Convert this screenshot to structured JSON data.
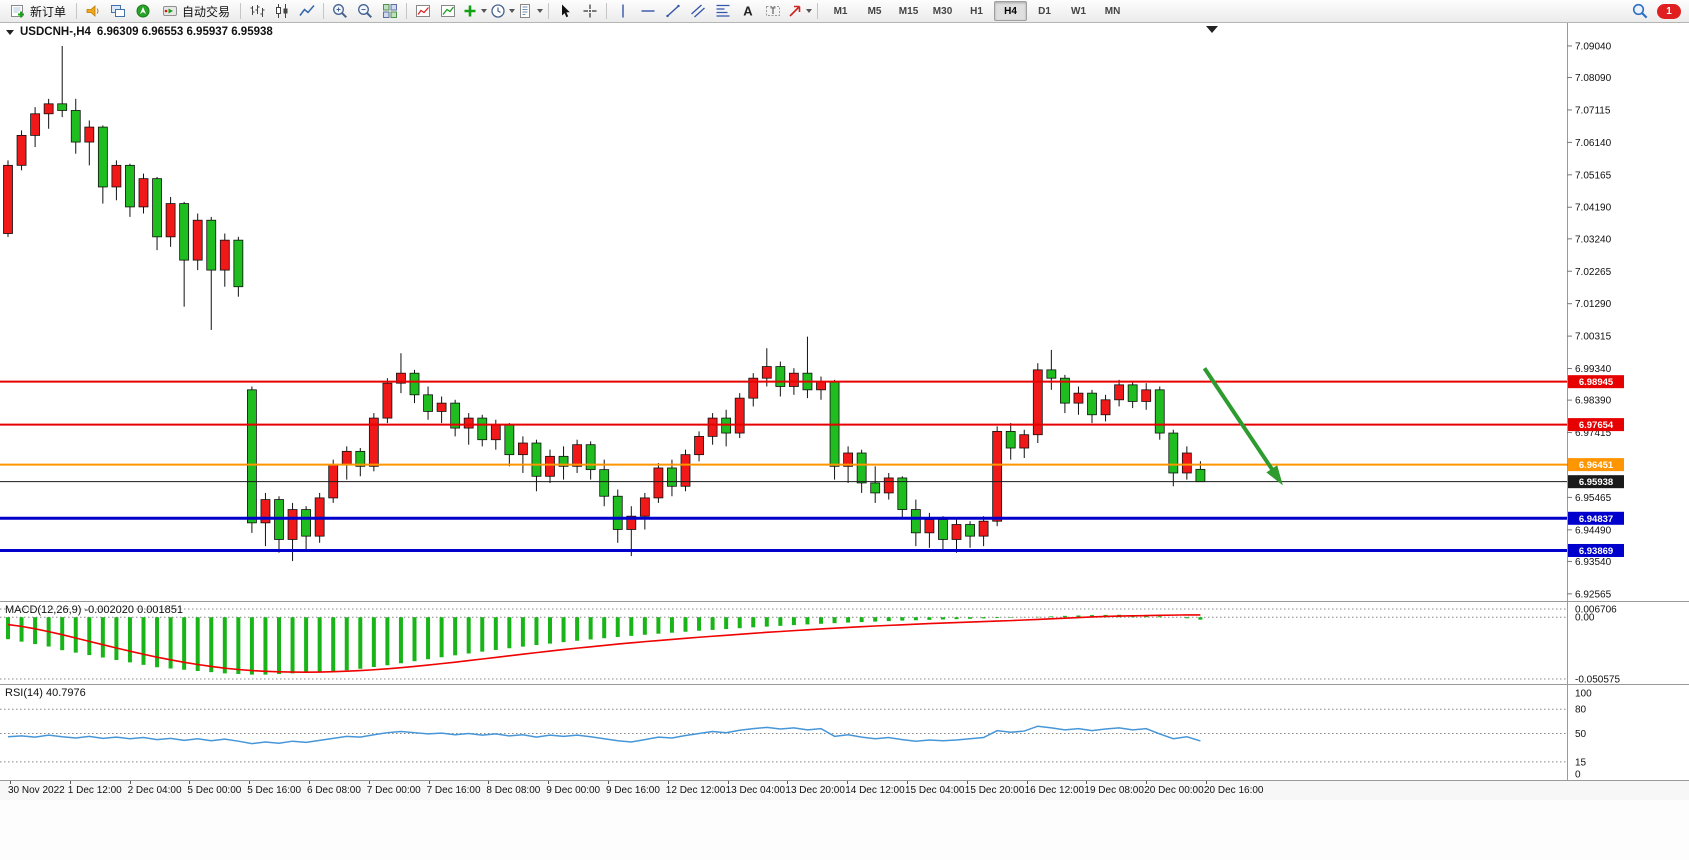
{
  "toolbar": {
    "new_order_label": "新订单",
    "auto_trading_label": "自动交易",
    "timeframes": [
      "M1",
      "M5",
      "M15",
      "M30",
      "H1",
      "H4",
      "D1",
      "W1",
      "MN"
    ],
    "active_timeframe": "H4",
    "notification_count": "1"
  },
  "chart": {
    "symbol_title": "USDCNH-,H4",
    "ohlc_line": "6.96309 6.96553 6.95937 6.95938",
    "axis_labels": [
      "7.09040",
      "7.08090",
      "7.07115",
      "7.06140",
      "7.05165",
      "7.04190",
      "7.03240",
      "7.02265",
      "7.01290",
      "7.00315",
      "6.99340",
      "6.98390",
      "6.97415",
      "6.96440",
      "6.95465",
      "6.94490",
      "6.93540",
      "6.92565"
    ],
    "time_labels": [
      "30 Nov 2022",
      "1 Dec 12:00",
      "2 Dec 04:00",
      "5 Dec 00:00",
      "5 Dec 16:00",
      "6 Dec 08:00",
      "7 Dec 00:00",
      "7 Dec 16:00",
      "8 Dec 08:00",
      "9 Dec 00:00",
      "9 Dec 16:00",
      "12 Dec 12:00",
      "13 Dec 04:00",
      "13 Dec 20:00",
      "14 Dec 12:00",
      "15 Dec 04:00",
      "15 Dec 20:00",
      "16 Dec 12:00",
      "19 Dec 08:00",
      "20 Dec 00:00",
      "20 Dec 16:00"
    ],
    "levels": [
      {
        "price": 6.98945,
        "label": "6.98945",
        "color": "#e60000",
        "width": 2,
        "name": "resistance-upper"
      },
      {
        "price": 6.97654,
        "label": "6.97654",
        "color": "#e60000",
        "width": 2,
        "name": "resistance-lower"
      },
      {
        "price": 6.96451,
        "label": "6.96451",
        "color": "#ff9500",
        "width": 2,
        "name": "support-orange"
      },
      {
        "price": 6.95938,
        "label": "6.95938",
        "color": "#1a1a1a",
        "width": 1,
        "name": "bid"
      },
      {
        "price": 6.94837,
        "label": "6.94837",
        "color": "#0000cc",
        "width": 3,
        "name": "support-blue-upper"
      },
      {
        "price": 6.93869,
        "label": "6.93869",
        "color": "#0000cc",
        "width": 3,
        "name": "support-blue-lower"
      }
    ]
  },
  "chart_data": {
    "type": "candlestick",
    "symbol": "USDCNH-",
    "period": "H4",
    "axis_price_range": [
      6.9235,
      7.0973
    ],
    "up_color": "#f01818",
    "down_color": "#1fbd1f",
    "candles": [
      [
        7.034,
        7.056,
        7.033,
        7.0545
      ],
      [
        7.0545,
        7.065,
        7.053,
        7.0635
      ],
      [
        7.0635,
        7.072,
        7.06,
        7.07
      ],
      [
        7.07,
        7.0745,
        7.0655,
        7.073
      ],
      [
        7.073,
        7.0904,
        7.069,
        7.071
      ],
      [
        7.071,
        7.0745,
        7.058,
        7.0615
      ],
      [
        7.0615,
        7.068,
        7.0545,
        7.066
      ],
      [
        7.066,
        7.0665,
        7.043,
        7.048
      ],
      [
        7.048,
        7.056,
        7.044,
        7.0545
      ],
      [
        7.0545,
        7.055,
        7.039,
        7.042
      ],
      [
        7.042,
        7.052,
        7.04,
        7.0505
      ],
      [
        7.0505,
        7.051,
        7.029,
        7.033
      ],
      [
        7.033,
        7.045,
        7.03,
        7.043
      ],
      [
        7.043,
        7.0435,
        7.012,
        7.026
      ],
      [
        7.026,
        7.04,
        7.023,
        7.038
      ],
      [
        7.038,
        7.039,
        7.005,
        7.023
      ],
      [
        7.023,
        7.034,
        7.018,
        7.032
      ],
      [
        7.032,
        7.033,
        7.015,
        7.018
      ],
      [
        6.987,
        6.988,
        6.944,
        6.947
      ],
      [
        6.947,
        6.956,
        6.94,
        6.954
      ],
      [
        6.954,
        6.955,
        6.938,
        6.942
      ],
      [
        6.942,
        6.953,
        6.9355,
        6.951
      ],
      [
        6.951,
        6.952,
        6.939,
        6.943
      ],
      [
        6.943,
        6.956,
        6.941,
        6.9545
      ],
      [
        6.9545,
        6.966,
        6.953,
        6.9645
      ],
      [
        6.9645,
        6.97,
        6.96,
        6.9685
      ],
      [
        6.9685,
        6.9695,
        6.961,
        6.964
      ],
      [
        6.964,
        6.98,
        6.9625,
        6.9785
      ],
      [
        6.9785,
        6.9905,
        6.977,
        6.989
      ],
      [
        6.989,
        6.998,
        6.986,
        6.992
      ],
      [
        6.992,
        6.993,
        6.983,
        6.9855
      ],
      [
        6.9855,
        6.988,
        6.978,
        6.9805
      ],
      [
        6.9805,
        6.985,
        6.977,
        6.983
      ],
      [
        6.983,
        6.984,
        6.973,
        6.9755
      ],
      [
        6.9755,
        6.98,
        6.9705,
        6.9785
      ],
      [
        6.9785,
        6.9795,
        6.97,
        6.972
      ],
      [
        6.972,
        6.978,
        6.969,
        6.9765
      ],
      [
        6.9765,
        6.977,
        6.964,
        6.9675
      ],
      [
        6.9675,
        6.973,
        6.962,
        6.971
      ],
      [
        6.971,
        6.972,
        6.9565,
        6.961
      ],
      [
        6.961,
        6.969,
        6.959,
        6.967
      ],
      [
        6.967,
        6.97,
        6.96,
        6.964
      ],
      [
        6.964,
        6.972,
        6.962,
        6.9705
      ],
      [
        6.9705,
        6.9715,
        6.96,
        6.963
      ],
      [
        6.963,
        6.966,
        6.952,
        6.955
      ],
      [
        6.955,
        6.957,
        6.941,
        6.945
      ],
      [
        6.945,
        6.952,
        6.937,
        6.949
      ],
      [
        6.949,
        6.956,
        6.945,
        6.9545
      ],
      [
        6.9545,
        6.965,
        6.953,
        6.9635
      ],
      [
        6.9635,
        6.966,
        6.955,
        6.958
      ],
      [
        6.958,
        6.969,
        6.9565,
        6.9675
      ],
      [
        6.9675,
        6.9745,
        6.9655,
        6.973
      ],
      [
        6.973,
        6.98,
        6.9705,
        6.9785
      ],
      [
        6.9785,
        6.981,
        6.97,
        6.974
      ],
      [
        6.974,
        6.986,
        6.9725,
        6.9845
      ],
      [
        6.9845,
        6.992,
        6.982,
        6.9905
      ],
      [
        6.9905,
        6.9995,
        6.988,
        6.994
      ],
      [
        6.994,
        6.9955,
        6.985,
        6.988
      ],
      [
        6.988,
        6.9935,
        6.9855,
        6.992
      ],
      [
        6.992,
        7.003,
        6.9845,
        6.987
      ],
      [
        6.987,
        6.991,
        6.984,
        6.9895
      ],
      [
        6.9895,
        6.99,
        6.96,
        6.964
      ],
      [
        6.964,
        6.97,
        6.959,
        6.968
      ],
      [
        6.968,
        6.969,
        6.956,
        6.959
      ],
      [
        6.959,
        6.964,
        6.953,
        6.956
      ],
      [
        6.956,
        6.962,
        6.954,
        6.9605
      ],
      [
        6.9605,
        6.961,
        6.948,
        6.951
      ],
      [
        6.951,
        6.954,
        6.94,
        6.944
      ],
      [
        6.944,
        6.95,
        6.9395,
        6.948
      ],
      [
        6.948,
        6.949,
        6.9385,
        6.942
      ],
      [
        6.942,
        6.948,
        6.938,
        6.9465
      ],
      [
        6.9465,
        6.9475,
        6.9395,
        6.943
      ],
      [
        6.943,
        6.949,
        6.94,
        6.9475
      ],
      [
        6.9475,
        6.976,
        6.946,
        6.9745
      ],
      [
        6.9745,
        6.977,
        6.966,
        6.9695
      ],
      [
        6.9695,
        6.975,
        6.9665,
        6.9735
      ],
      [
        6.9735,
        6.995,
        6.971,
        6.993
      ],
      [
        6.993,
        6.999,
        6.987,
        6.9905
      ],
      [
        6.9905,
        6.9915,
        6.98,
        6.983
      ],
      [
        6.983,
        6.988,
        6.9795,
        6.986
      ],
      [
        6.986,
        6.987,
        6.977,
        6.9795
      ],
      [
        6.9795,
        6.9855,
        6.9775,
        6.984
      ],
      [
        6.984,
        6.99,
        6.982,
        6.9885
      ],
      [
        6.9885,
        6.9895,
        6.9815,
        6.9835
      ],
      [
        6.9835,
        6.989,
        6.981,
        6.987
      ],
      [
        6.987,
        6.988,
        6.972,
        6.974
      ],
      [
        6.974,
        6.975,
        6.958,
        6.962
      ],
      [
        6.962,
        6.97,
        6.96,
        6.968
      ],
      [
        6.96309,
        6.96553,
        6.95937,
        6.95938
      ]
    ],
    "macd": {
      "display_label": "MACD(12,26,9) -0.002020 0.001851",
      "scale_labels": [
        "0.006706",
        "0.00",
        "-0.050575"
      ],
      "range": [
        -0.050575,
        0.006706
      ],
      "histogram_color": "#18b418",
      "signal_color": "#f00000",
      "histogram": [
        -0.018,
        -0.02,
        -0.022,
        -0.024,
        -0.027,
        -0.029,
        -0.031,
        -0.033,
        -0.035,
        -0.037,
        -0.039,
        -0.041,
        -0.042,
        -0.043,
        -0.044,
        -0.045,
        -0.046,
        -0.0465,
        -0.047,
        -0.047,
        -0.0465,
        -0.046,
        -0.0455,
        -0.045,
        -0.0443,
        -0.0434,
        -0.0422,
        -0.0408,
        -0.0393,
        -0.0377,
        -0.036,
        -0.0344,
        -0.0328,
        -0.0312,
        -0.0297,
        -0.0282,
        -0.0268,
        -0.0254,
        -0.0241,
        -0.0228,
        -0.0216,
        -0.0204,
        -0.0193,
        -0.0182,
        -0.0172,
        -0.0162,
        -0.0153,
        -0.0144,
        -0.0135,
        -0.0127,
        -0.0119,
        -0.0111,
        -0.0104,
        -0.0097,
        -0.009,
        -0.0083,
        -0.0077,
        -0.0071,
        -0.0065,
        -0.0059,
        -0.0054,
        -0.0049,
        -0.0044,
        -0.004,
        -0.0036,
        -0.0032,
        -0.0028,
        -0.0025,
        -0.0022,
        -0.0019,
        -0.0016,
        -0.0013,
        -0.001,
        -0.0007,
        -0.0004,
        -0.0001,
        0.0003,
        0.0007,
        0.0011,
        0.0014,
        0.0017,
        0.0019,
        0.002,
        0.0018,
        0.0014,
        0.0008,
        0.0001,
        -0.0009,
        -0.00202
      ],
      "signal": [
        -0.006,
        -0.0075,
        -0.0095,
        -0.0118,
        -0.0143,
        -0.017,
        -0.0198,
        -0.0225,
        -0.0252,
        -0.0278,
        -0.0303,
        -0.0327,
        -0.0349,
        -0.0369,
        -0.0387,
        -0.0403,
        -0.0417,
        -0.0428,
        -0.0437,
        -0.0443,
        -0.0447,
        -0.0449,
        -0.045,
        -0.0449,
        -0.0446,
        -0.0442,
        -0.0437,
        -0.043,
        -0.0422,
        -0.0413,
        -0.0403,
        -0.0392,
        -0.038,
        -0.0368,
        -0.0355,
        -0.0342,
        -0.0329,
        -0.0316,
        -0.0303,
        -0.029,
        -0.0277,
        -0.0265,
        -0.0253,
        -0.0242,
        -0.0231,
        -0.022,
        -0.021,
        -0.02,
        -0.0191,
        -0.0182,
        -0.0173,
        -0.0164,
        -0.0156,
        -0.0148,
        -0.014,
        -0.0132,
        -0.0124,
        -0.0117,
        -0.011,
        -0.0103,
        -0.0096,
        -0.009,
        -0.0084,
        -0.0078,
        -0.0072,
        -0.0067,
        -0.0062,
        -0.0057,
        -0.0052,
        -0.0048,
        -0.0044,
        -0.004,
        -0.0036,
        -0.0032,
        -0.0028,
        -0.0023,
        -0.0018,
        -0.0013,
        -0.0008,
        -0.0003,
        0.0002,
        0.0006,
        0.0009,
        0.0011,
        0.0013,
        0.0015,
        0.0017,
        0.0019,
        0.001851
      ]
    },
    "rsi": {
      "display_label": "RSI(14) 40.7976",
      "scale_labels": [
        "100",
        "80",
        "50",
        "15",
        "0"
      ],
      "levels": [
        80,
        50,
        15
      ],
      "range": [
        0,
        100
      ],
      "line_color": "#4796d8",
      "values": [
        46,
        47,
        45.5,
        48,
        46,
        44.5,
        46.5,
        44,
        45.5,
        43.5,
        45,
        42.5,
        44,
        41.5,
        43.5,
        41,
        43,
        40.5,
        37.5,
        39.5,
        38,
        40.5,
        39,
        41.5,
        44,
        46.5,
        45.5,
        48.5,
        51,
        52.5,
        51,
        49.5,
        50.5,
        48.5,
        50,
        48,
        49.5,
        47,
        48.5,
        45.5,
        48,
        46.5,
        48,
        46,
        43.5,
        41,
        39.5,
        42.5,
        45.5,
        44.5,
        47.5,
        50,
        52.5,
        51,
        54,
        56,
        57.5,
        55.5,
        57,
        54.5,
        56,
        46.5,
        48.5,
        45.5,
        43.5,
        45,
        42.5,
        40.5,
        42,
        41,
        42,
        43.5,
        45,
        53.5,
        51.5,
        53,
        59,
        57,
        54.5,
        56,
        53.5,
        55.5,
        57,
        54.5,
        56,
        49.5,
        43.5,
        46,
        40.7976
      ]
    },
    "annotation_arrow": {
      "from_bar": 88.3,
      "from_price": 6.9935,
      "to_bar": 93.8,
      "to_price": 6.96,
      "color": "#2e9b2e"
    }
  }
}
